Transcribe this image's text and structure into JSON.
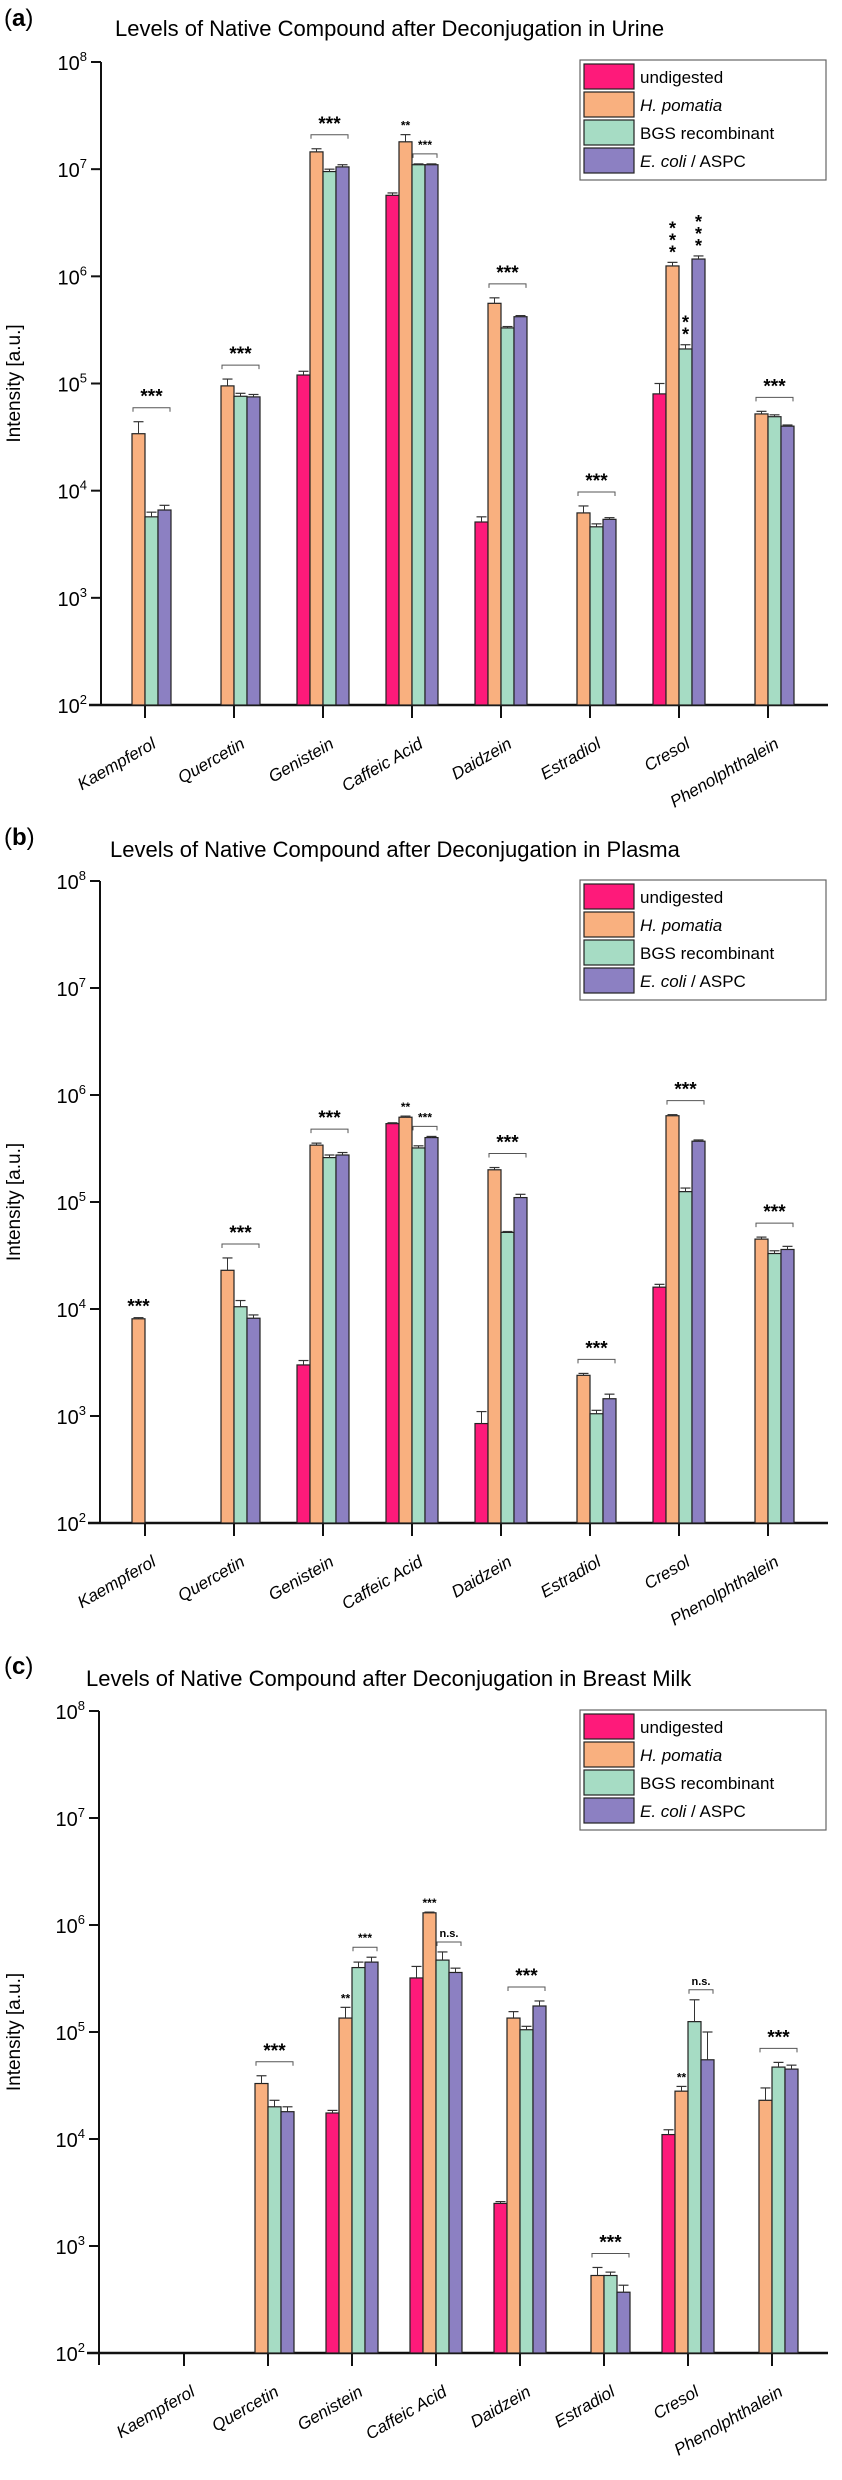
{
  "legend": [
    {
      "label": "undigested",
      "italic_part": "",
      "rest": "undigested"
    },
    {
      "label": "H. pomatia",
      "italic_part": "H. pomatia",
      "rest": ""
    },
    {
      "label": "BGS recombinant",
      "italic_part": "",
      "rest": "BGS recombinant"
    },
    {
      "label": "E. coli / ASPC",
      "italic_part": "E. coli",
      "rest": " / ASPC"
    }
  ],
  "colors": {
    "undigested": "#fe1a7a",
    "h_pomatia": "#f9b07f",
    "bgs": "#a6dcc4",
    "ecoli": "#8c80c2",
    "axis": "#111111"
  },
  "chart_data": [
    {
      "panel": "a",
      "type": "bar",
      "title": "Levels of Native Compound after Deconjugation in Urine",
      "xlabel": "",
      "ylabel": "Intensity [a.u.]",
      "yscale": "log",
      "ylim": [
        100,
        100000000
      ],
      "yticks": [
        "10^2",
        "10^3",
        "10^4",
        "10^5",
        "10^6",
        "10^7",
        "10^8"
      ],
      "categories": [
        "Kaempferol",
        "Quercetin",
        "Genistein",
        "Caffeic Acid",
        "Daidzein",
        "Estradiol",
        "Cresol",
        "Phenolphthalein"
      ],
      "legend_position": "top-right",
      "extra_leading_tick": false,
      "series": [
        {
          "name": "undigested",
          "values": [
            null,
            null,
            120000,
            5700000,
            5100,
            null,
            80000,
            null
          ],
          "errors": [
            null,
            null,
            10000,
            300000,
            600,
            null,
            20000,
            null
          ]
        },
        {
          "name": "H. pomatia",
          "values": [
            34000,
            95000,
            14500000,
            18000000,
            560000,
            6200,
            1250000,
            52000
          ],
          "errors": [
            10000,
            15000,
            1000000,
            3000000,
            70000,
            1000,
            100000,
            3000
          ]
        },
        {
          "name": "BGS recombinant",
          "values": [
            5700,
            76000,
            9500000,
            11000000,
            330000,
            4600,
            210000,
            49000
          ],
          "errors": [
            600,
            5000,
            500000,
            200000,
            10000,
            300,
            20000,
            2000
          ]
        },
        {
          "name": "E. coli / ASPC",
          "values": [
            6600,
            75000,
            10500000,
            11000000,
            420000,
            5400,
            1450000,
            40000
          ],
          "errors": [
            700,
            4000,
            500000,
            200000,
            10000,
            200,
            100000,
            1000
          ]
        }
      ],
      "annotations": [
        {
          "text": "***",
          "category": "Kaempferol",
          "type": "bracket",
          "from": 1,
          "to": 3
        },
        {
          "text": "***",
          "category": "Quercetin",
          "type": "bracket",
          "from": 1,
          "to": 3
        },
        {
          "text": "***",
          "category": "Genistein",
          "type": "bracket",
          "from": 1,
          "to": 3
        },
        {
          "text": "**",
          "category": "Caffeic Acid",
          "type": "above",
          "series": 1
        },
        {
          "text": "***",
          "category": "Caffeic Acid",
          "type": "bracket-small",
          "from": 2,
          "to": 3
        },
        {
          "text": "***",
          "category": "Daidzein",
          "type": "bracket",
          "from": 1,
          "to": 3
        },
        {
          "text": "***",
          "category": "Estradiol",
          "type": "bracket",
          "from": 1,
          "to": 3
        },
        {
          "text": "***",
          "category": "Cresol",
          "type": "vertical",
          "series": 1
        },
        {
          "text": "**",
          "category": "Cresol",
          "type": "vertical",
          "series": 2
        },
        {
          "text": "***",
          "category": "Cresol",
          "type": "vertical",
          "series": 3
        },
        {
          "text": "***",
          "category": "Phenolphthalein",
          "type": "bracket",
          "from": 1,
          "to": 3
        }
      ]
    },
    {
      "panel": "b",
      "type": "bar",
      "title": "Levels of Native Compound after Deconjugation in Plasma",
      "xlabel": "",
      "ylabel": "Intensity [a.u.]",
      "yscale": "log",
      "ylim": [
        100,
        100000000
      ],
      "yticks": [
        "10^2",
        "10^3",
        "10^4",
        "10^5",
        "10^6",
        "10^7",
        "10^8"
      ],
      "categories": [
        "Kaempferol",
        "Quercetin",
        "Genistein",
        "Caffeic Acid",
        "Daidzein",
        "Estradiol",
        "Cresol",
        "Phenolphthalein"
      ],
      "legend_position": "top-right",
      "extra_leading_tick": false,
      "series": [
        {
          "name": "undigested",
          "values": [
            null,
            null,
            3000,
            540000,
            850,
            null,
            16000,
            null
          ],
          "errors": [
            null,
            null,
            300,
            10000,
            250,
            null,
            1000,
            null
          ]
        },
        {
          "name": "H. pomatia",
          "values": [
            8100,
            23000,
            340000,
            620000,
            200000,
            2400,
            640000,
            45000
          ],
          "errors": [
            200,
            7000,
            15000,
            15000,
            10000,
            100,
            15000,
            2000
          ]
        },
        {
          "name": "BGS recombinant",
          "values": [
            null,
            10500,
            260000,
            320000,
            52000,
            1050,
            125000,
            33000
          ],
          "errors": [
            null,
            1500,
            15000,
            15000,
            1000,
            80,
            10000,
            2000
          ]
        },
        {
          "name": "E. coli / ASPC",
          "values": [
            null,
            8200,
            275000,
            400000,
            110000,
            1450,
            370000,
            36000
          ],
          "errors": [
            null,
            600,
            15000,
            10000,
            8000,
            150,
            10000,
            2500
          ]
        }
      ],
      "annotations": [
        {
          "text": "***",
          "category": "Kaempferol",
          "type": "above",
          "series": 1
        },
        {
          "text": "***",
          "category": "Quercetin",
          "type": "bracket",
          "from": 1,
          "to": 3
        },
        {
          "text": "***",
          "category": "Genistein",
          "type": "bracket",
          "from": 1,
          "to": 3
        },
        {
          "text": "**",
          "category": "Caffeic Acid",
          "type": "above",
          "series": 1
        },
        {
          "text": "***",
          "category": "Caffeic Acid",
          "type": "bracket-small",
          "from": 2,
          "to": 3
        },
        {
          "text": "***",
          "category": "Daidzein",
          "type": "bracket",
          "from": 1,
          "to": 3
        },
        {
          "text": "***",
          "category": "Estradiol",
          "type": "bracket",
          "from": 1,
          "to": 3
        },
        {
          "text": "***",
          "category": "Cresol",
          "type": "bracket",
          "from": 1,
          "to": 3
        },
        {
          "text": "***",
          "category": "Phenolphthalein",
          "type": "bracket",
          "from": 1,
          "to": 3
        }
      ]
    },
    {
      "panel": "c",
      "type": "bar",
      "title": "Levels of Native Compound after Deconjugation in Breast Milk",
      "xlabel": "",
      "ylabel": "Intensity [a.u.]",
      "yscale": "log",
      "ylim": [
        100,
        100000000
      ],
      "yticks": [
        "10^2",
        "10^3",
        "10^4",
        "10^5",
        "10^6",
        "10^7",
        "10^8"
      ],
      "categories": [
        "Kaempferol",
        "Quercetin",
        "Genistein",
        "Caffeic Acid",
        "Daidzein",
        "Estradiol",
        "Cresol",
        "Phenolphthalein"
      ],
      "legend_position": "top-right",
      "extra_leading_tick": true,
      "series": [
        {
          "name": "undigested",
          "values": [
            null,
            null,
            17500,
            320000,
            2500,
            null,
            11000,
            null
          ],
          "errors": [
            null,
            null,
            1000,
            90000,
            100,
            null,
            1200,
            null
          ]
        },
        {
          "name": "H. pomatia",
          "values": [
            null,
            33000,
            135000,
            1300000,
            135000,
            530,
            28000,
            23000
          ],
          "errors": [
            null,
            6000,
            35000,
            20000,
            20000,
            100,
            3000,
            7000
          ]
        },
        {
          "name": "BGS recombinant",
          "values": [
            null,
            20000,
            400000,
            470000,
            105000,
            530,
            125000,
            47000
          ],
          "errors": [
            null,
            3000,
            50000,
            90000,
            8000,
            40,
            75000,
            5000
          ]
        },
        {
          "name": "E. coli / ASPC",
          "values": [
            null,
            18000,
            450000,
            360000,
            175000,
            370,
            55000,
            45000
          ],
          "errors": [
            null,
            2000,
            50000,
            35000,
            20000,
            60,
            45000,
            4000
          ]
        }
      ],
      "annotations": [
        {
          "text": "***",
          "category": "Quercetin",
          "type": "bracket",
          "from": 1,
          "to": 3
        },
        {
          "text": "**",
          "category": "Genistein",
          "type": "above",
          "series": 1
        },
        {
          "text": "***",
          "category": "Genistein",
          "type": "bracket-small",
          "from": 2,
          "to": 3
        },
        {
          "text": "***",
          "category": "Caffeic Acid",
          "type": "above",
          "series": 1
        },
        {
          "text": "n.s.",
          "category": "Caffeic Acid",
          "type": "bracket-small",
          "from": 2,
          "to": 3
        },
        {
          "text": "***",
          "category": "Daidzein",
          "type": "bracket",
          "from": 1,
          "to": 3
        },
        {
          "text": "***",
          "category": "Estradiol",
          "type": "bracket",
          "from": 1,
          "to": 3
        },
        {
          "text": "**",
          "category": "Cresol",
          "type": "above",
          "series": 1
        },
        {
          "text": "n.s.",
          "category": "Cresol",
          "type": "bracket-small",
          "from": 2,
          "to": 3
        },
        {
          "text": "***",
          "category": "Phenolphthalein",
          "type": "bracket",
          "from": 1,
          "to": 3
        }
      ]
    }
  ]
}
